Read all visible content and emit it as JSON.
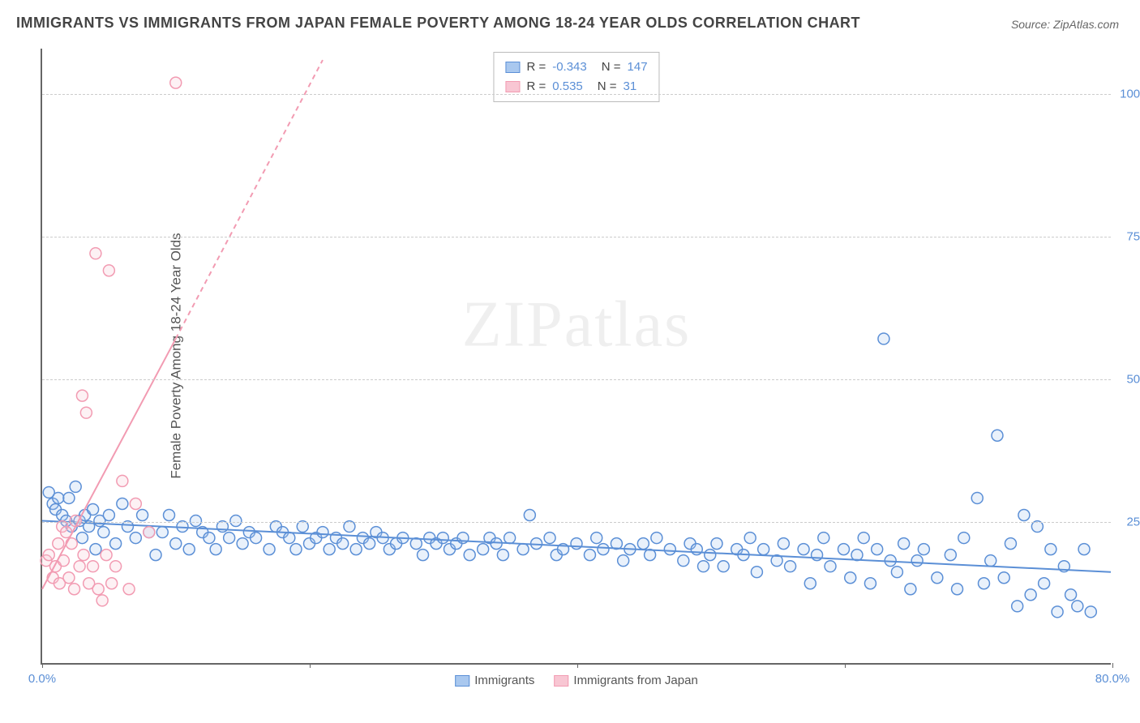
{
  "title": "IMMIGRANTS VS IMMIGRANTS FROM JAPAN FEMALE POVERTY AMONG 18-24 YEAR OLDS CORRELATION CHART",
  "source_prefix": "Source: ",
  "source": "ZipAtlas.com",
  "ylabel": "Female Poverty Among 18-24 Year Olds",
  "watermark": "ZIPatlas",
  "chart": {
    "type": "scatter_with_regression",
    "x_domain": [
      0,
      80
    ],
    "y_domain": [
      0,
      108
    ],
    "xticks": [
      0,
      20,
      40,
      60,
      80
    ],
    "xticks_labels_shown": {
      "0": "0.0%",
      "80": "80.0%"
    },
    "yticks": [
      25,
      50,
      75,
      100
    ],
    "ytick_labels": [
      "25.0%",
      "50.0%",
      "75.0%",
      "100.0%"
    ],
    "grid_color": "#cccccc",
    "background_color": "#ffffff",
    "axis_color": "#666666",
    "tick_label_color": "#5b8fd6",
    "marker_radius": 7,
    "marker_stroke_width": 1.5,
    "marker_fill_opacity": 0.25,
    "regression_line_width": 2,
    "series": [
      {
        "name": "Immigrants",
        "color_stroke": "#5b8fd6",
        "color_fill": "#a9c8ef",
        "r": -0.343,
        "n": 147,
        "regression": {
          "x1": 0,
          "y1": 25,
          "x2": 80,
          "y2": 16,
          "dash": null
        },
        "points": [
          [
            0.5,
            30
          ],
          [
            0.8,
            28
          ],
          [
            1,
            27
          ],
          [
            1.2,
            29
          ],
          [
            1.5,
            26
          ],
          [
            1.8,
            25
          ],
          [
            2,
            29
          ],
          [
            2.2,
            24
          ],
          [
            2.5,
            31
          ],
          [
            2.8,
            25
          ],
          [
            3,
            22
          ],
          [
            3.2,
            26
          ],
          [
            3.5,
            24
          ],
          [
            3.8,
            27
          ],
          [
            4,
            20
          ],
          [
            4.3,
            25
          ],
          [
            4.6,
            23
          ],
          [
            5,
            26
          ],
          [
            5.5,
            21
          ],
          [
            6,
            28
          ],
          [
            6.4,
            24
          ],
          [
            7,
            22
          ],
          [
            7.5,
            26
          ],
          [
            8,
            23
          ],
          [
            8.5,
            19
          ],
          [
            9,
            23
          ],
          [
            9.5,
            26
          ],
          [
            10,
            21
          ],
          [
            10.5,
            24
          ],
          [
            11,
            20
          ],
          [
            11.5,
            25
          ],
          [
            12,
            23
          ],
          [
            12.5,
            22
          ],
          [
            13,
            20
          ],
          [
            13.5,
            24
          ],
          [
            14,
            22
          ],
          [
            14.5,
            25
          ],
          [
            15,
            21
          ],
          [
            15.5,
            23
          ],
          [
            16,
            22
          ],
          [
            17,
            20
          ],
          [
            17.5,
            24
          ],
          [
            18,
            23
          ],
          [
            18.5,
            22
          ],
          [
            19,
            20
          ],
          [
            19.5,
            24
          ],
          [
            20,
            21
          ],
          [
            20.5,
            22
          ],
          [
            21,
            23
          ],
          [
            21.5,
            20
          ],
          [
            22,
            22
          ],
          [
            22.5,
            21
          ],
          [
            23,
            24
          ],
          [
            23.5,
            20
          ],
          [
            24,
            22
          ],
          [
            24.5,
            21
          ],
          [
            25,
            23
          ],
          [
            25.5,
            22
          ],
          [
            26,
            20
          ],
          [
            26.5,
            21
          ],
          [
            27,
            22
          ],
          [
            28,
            21
          ],
          [
            28.5,
            19
          ],
          [
            29,
            22
          ],
          [
            29.5,
            21
          ],
          [
            30,
            22
          ],
          [
            30.5,
            20
          ],
          [
            31,
            21
          ],
          [
            31.5,
            22
          ],
          [
            32,
            19
          ],
          [
            33,
            20
          ],
          [
            33.5,
            22
          ],
          [
            34,
            21
          ],
          [
            34.5,
            19
          ],
          [
            35,
            22
          ],
          [
            36,
            20
          ],
          [
            36.5,
            26
          ],
          [
            37,
            21
          ],
          [
            38,
            22
          ],
          [
            38.5,
            19
          ],
          [
            39,
            20
          ],
          [
            40,
            21
          ],
          [
            41,
            19
          ],
          [
            41.5,
            22
          ],
          [
            42,
            20
          ],
          [
            43,
            21
          ],
          [
            43.5,
            18
          ],
          [
            44,
            20
          ],
          [
            45,
            21
          ],
          [
            45.5,
            19
          ],
          [
            46,
            22
          ],
          [
            47,
            20
          ],
          [
            48,
            18
          ],
          [
            48.5,
            21
          ],
          [
            49,
            20
          ],
          [
            49.5,
            17
          ],
          [
            50,
            19
          ],
          [
            50.5,
            21
          ],
          [
            51,
            17
          ],
          [
            52,
            20
          ],
          [
            52.5,
            19
          ],
          [
            53,
            22
          ],
          [
            53.5,
            16
          ],
          [
            54,
            20
          ],
          [
            55,
            18
          ],
          [
            55.5,
            21
          ],
          [
            56,
            17
          ],
          [
            57,
            20
          ],
          [
            57.5,
            14
          ],
          [
            58,
            19
          ],
          [
            58.5,
            22
          ],
          [
            59,
            17
          ],
          [
            60,
            20
          ],
          [
            60.5,
            15
          ],
          [
            61,
            19
          ],
          [
            61.5,
            22
          ],
          [
            62,
            14
          ],
          [
            62.5,
            20
          ],
          [
            63,
            57
          ],
          [
            63.5,
            18
          ],
          [
            64,
            16
          ],
          [
            64.5,
            21
          ],
          [
            65,
            13
          ],
          [
            65.5,
            18
          ],
          [
            66,
            20
          ],
          [
            67,
            15
          ],
          [
            68,
            19
          ],
          [
            68.5,
            13
          ],
          [
            69,
            22
          ],
          [
            70,
            29
          ],
          [
            70.5,
            14
          ],
          [
            71,
            18
          ],
          [
            71.5,
            40
          ],
          [
            72,
            15
          ],
          [
            72.5,
            21
          ],
          [
            73,
            10
          ],
          [
            73.5,
            26
          ],
          [
            74,
            12
          ],
          [
            74.5,
            24
          ],
          [
            75,
            14
          ],
          [
            75.5,
            20
          ],
          [
            76,
            9
          ],
          [
            76.5,
            17
          ],
          [
            77,
            12
          ],
          [
            77.5,
            10
          ],
          [
            78,
            20
          ],
          [
            78.5,
            9
          ]
        ]
      },
      {
        "name": "Immigrants from Japan",
        "color_stroke": "#f29bb2",
        "color_fill": "#f8c6d3",
        "r": 0.535,
        "n": 31,
        "regression_solid": {
          "x1": 0,
          "y1": 13,
          "x2": 10,
          "y2": 57
        },
        "regression_dashed": {
          "x1": 10,
          "y1": 57,
          "x2": 21,
          "y2": 106
        },
        "points": [
          [
            0.3,
            18
          ],
          [
            0.5,
            19
          ],
          [
            0.8,
            15
          ],
          [
            1,
            17
          ],
          [
            1.2,
            21
          ],
          [
            1.3,
            14
          ],
          [
            1.5,
            24
          ],
          [
            1.6,
            18
          ],
          [
            1.8,
            23
          ],
          [
            2,
            15
          ],
          [
            2.2,
            21
          ],
          [
            2.4,
            13
          ],
          [
            2.5,
            25
          ],
          [
            2.8,
            17
          ],
          [
            3,
            47
          ],
          [
            3.1,
            19
          ],
          [
            3.3,
            44
          ],
          [
            3.5,
            14
          ],
          [
            3.8,
            17
          ],
          [
            4,
            72
          ],
          [
            4.2,
            13
          ],
          [
            4.5,
            11
          ],
          [
            4.8,
            19
          ],
          [
            5,
            69
          ],
          [
            5.2,
            14
          ],
          [
            5.5,
            17
          ],
          [
            6,
            32
          ],
          [
            6.5,
            13
          ],
          [
            7,
            28
          ],
          [
            8,
            23
          ],
          [
            10,
            102
          ]
        ]
      }
    ]
  },
  "legend_top": [
    {
      "swatch_fill": "#a9c8ef",
      "swatch_stroke": "#5b8fd6",
      "r_label": "R =",
      "r_val": "-0.343",
      "n_label": "N =",
      "n_val": "147"
    },
    {
      "swatch_fill": "#f8c6d3",
      "swatch_stroke": "#f29bb2",
      "r_label": "R =",
      "r_val": " 0.535",
      "n_label": "N =",
      "n_val": " 31"
    }
  ],
  "legend_bottom": [
    {
      "swatch_fill": "#a9c8ef",
      "swatch_stroke": "#5b8fd6",
      "label": "Immigrants"
    },
    {
      "swatch_fill": "#f8c6d3",
      "swatch_stroke": "#f29bb2",
      "label": "Immigrants from Japan"
    }
  ]
}
